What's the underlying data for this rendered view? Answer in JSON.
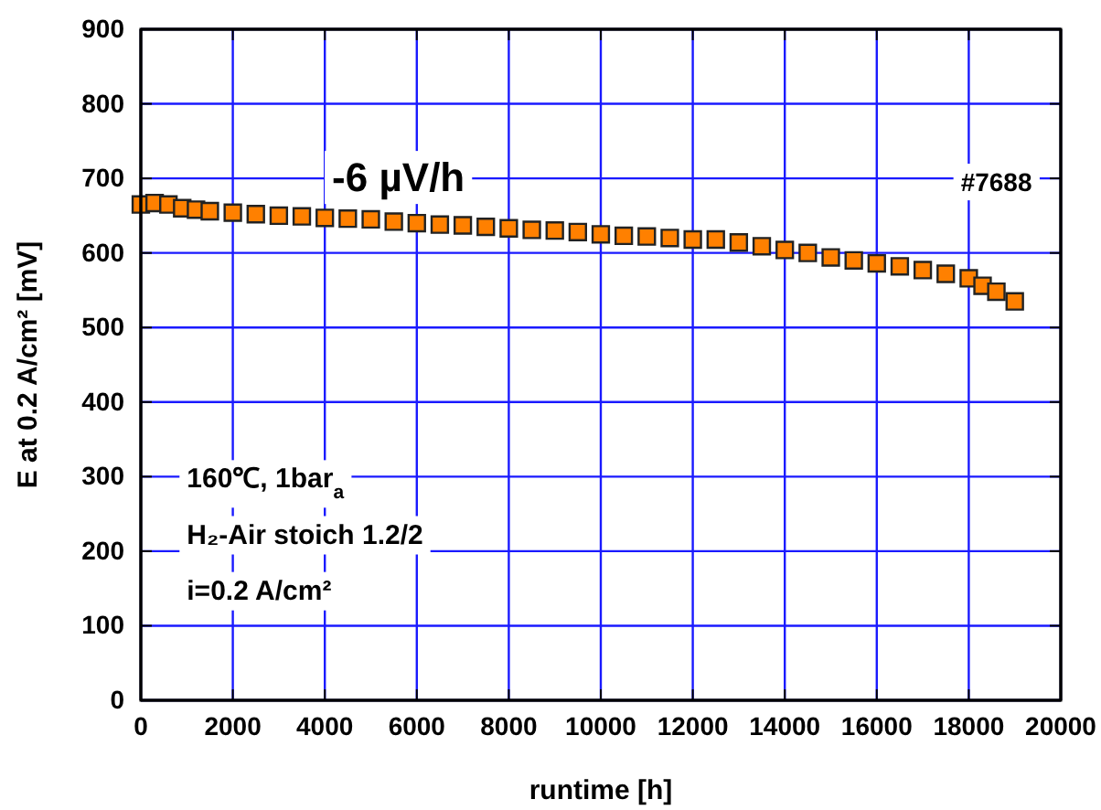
{
  "chart_data": {
    "type": "scatter",
    "xlabel": "runtime [h]",
    "ylabel": "E at 0.2 A/cm² [mV]",
    "xlim": [
      0,
      20000
    ],
    "xticks": [
      0,
      2000,
      4000,
      6000,
      8000,
      10000,
      12000,
      14000,
      16000,
      18000,
      20000
    ],
    "ylim": [
      0,
      900
    ],
    "yticks": [
      0,
      100,
      200,
      300,
      400,
      500,
      600,
      700,
      800,
      900
    ],
    "grid": true,
    "marker": "square",
    "series": [
      {
        "color": "#ff8000",
        "x": [
          0,
          300,
          600,
          900,
          1200,
          1500,
          2000,
          2500,
          3000,
          3500,
          4000,
          4500,
          5000,
          5500,
          6000,
          6500,
          7000,
          7500,
          8000,
          8500,
          9000,
          9500,
          10000,
          10500,
          11000,
          11500,
          12000,
          12500,
          13000,
          13500,
          14000,
          14500,
          15000,
          15500,
          16000,
          16500,
          17000,
          17500,
          18000,
          18300,
          18600,
          19000
        ],
        "values": [
          665,
          667,
          665,
          660,
          658,
          656,
          654,
          652,
          650,
          649,
          647,
          646,
          645,
          642,
          640,
          638,
          637,
          635,
          633,
          631,
          630,
          628,
          625,
          623,
          622,
          620,
          618,
          618,
          614,
          609,
          604,
          600,
          594,
          590,
          586,
          582,
          577,
          572,
          566,
          556,
          548,
          535
        ]
      }
    ],
    "annotations": [
      "-6 µV/h",
      "#7688",
      "160℃, 1bar$_{a}$",
      "H₂-Air stoich 1.2/2",
      "i=0.2 A/cm²"
    ]
  }
}
